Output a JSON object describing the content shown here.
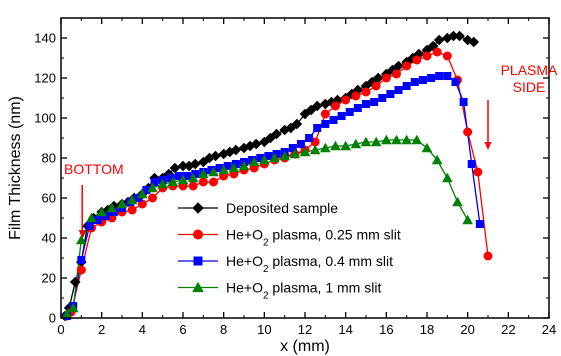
{
  "chart_data": {
    "type": "line",
    "title": "",
    "xlabel": "x (mm)",
    "ylabel": "Film Thickness (nm)",
    "xlim": [
      0,
      24
    ],
    "ylim": [
      0,
      150
    ],
    "xticks": [
      0,
      2,
      4,
      6,
      8,
      10,
      12,
      14,
      16,
      18,
      20,
      22,
      24
    ],
    "yticks": [
      0,
      20,
      40,
      60,
      80,
      100,
      120,
      140
    ],
    "legend_position": "center-right",
    "grid": false,
    "series": [
      {
        "name": "Deposited sample",
        "color": "#000000",
        "marker": "diamond",
        "x": [
          0.2,
          0.4,
          0.7,
          1.0,
          1.3,
          1.6,
          2.0,
          2.3,
          2.6,
          3.0,
          3.3,
          3.6,
          4.0,
          4.3,
          4.6,
          5.0,
          5.3,
          5.6,
          6.0,
          6.3,
          6.6,
          7.0,
          7.3,
          7.6,
          8.0,
          8.3,
          8.6,
          9.0,
          9.3,
          9.6,
          10.0,
          10.3,
          10.6,
          11.0,
          11.3,
          11.6,
          12.0,
          12.3,
          12.6,
          13.0,
          13.3,
          13.6,
          14.0,
          14.3,
          14.6,
          15.0,
          15.3,
          15.6,
          16.0,
          16.3,
          16.6,
          17.0,
          17.3,
          17.6,
          18.0,
          18.3,
          18.6,
          19.0,
          19.3,
          19.6,
          20.0,
          20.3
        ],
        "values": [
          1,
          5,
          18,
          28,
          46,
          50,
          53,
          54,
          56,
          57,
          58,
          60,
          62,
          65,
          70,
          70,
          72,
          75,
          76,
          76,
          77,
          78,
          80,
          81,
          82,
          83,
          84,
          85,
          86,
          87,
          88,
          90,
          92,
          94,
          95,
          97,
          102,
          104,
          106,
          107,
          108,
          109,
          110,
          112,
          114,
          116,
          118,
          120,
          122,
          124,
          126,
          128,
          130,
          132,
          134,
          136,
          139,
          140,
          141,
          141,
          139,
          138
        ]
      },
      {
        "name": "He+O2 plasma, 0.25 mm slit",
        "label_prefix": "He+O",
        "label_sub": "2",
        "label_suffix": " plasma, 0.25 mm slit",
        "color": "#ff0000",
        "marker": "circle",
        "x": [
          0.3,
          0.5,
          1.0,
          1.5,
          2.0,
          2.5,
          3.0,
          3.5,
          4.0,
          4.5,
          5.0,
          5.5,
          6.0,
          6.5,
          7.0,
          7.5,
          8.0,
          8.5,
          9.0,
          9.5,
          10.0,
          10.5,
          11.0,
          11.5,
          12.0,
          12.5,
          13.0,
          13.5,
          14.0,
          14.5,
          15.0,
          15.5,
          16.0,
          16.5,
          17.0,
          17.5,
          18.0,
          18.5,
          19.0,
          19.5,
          20.0,
          20.5,
          21.0
        ],
        "values": [
          1,
          3,
          24,
          45,
          48,
          50,
          53,
          54,
          57,
          60,
          65,
          66,
          66,
          66,
          68,
          68,
          71,
          72,
          74,
          75,
          77,
          79,
          80,
          82,
          84,
          88,
          102,
          106,
          109,
          111,
          113,
          116,
          120,
          122,
          126,
          129,
          131,
          133,
          131,
          119,
          93,
          73,
          31
        ]
      },
      {
        "name": "He+O2 plasma, 0.4 mm slit",
        "label_prefix": "He+O",
        "label_sub": "2",
        "label_suffix": " plasma, 0.4 mm slit",
        "color": "#0000ff",
        "marker": "square",
        "x": [
          0.3,
          0.6,
          1.0,
          1.4,
          1.8,
          2.2,
          2.6,
          3.0,
          3.4,
          3.8,
          4.2,
          4.6,
          5.0,
          5.4,
          5.8,
          6.2,
          6.6,
          7.0,
          7.4,
          7.8,
          8.2,
          8.6,
          9.0,
          9.4,
          9.8,
          10.2,
          10.6,
          11.0,
          11.4,
          11.8,
          12.2,
          12.6,
          13.0,
          13.4,
          13.8,
          14.2,
          14.6,
          15.0,
          15.4,
          15.8,
          16.2,
          16.6,
          17.0,
          17.4,
          17.8,
          18.2,
          18.6,
          19.0,
          19.4,
          19.8,
          20.2,
          20.6
        ],
        "values": [
          1,
          6,
          29,
          46,
          49,
          51,
          53,
          55,
          58,
          60,
          64,
          68,
          69,
          70,
          71,
          71,
          72,
          73,
          74,
          75,
          76,
          77,
          78,
          79,
          80,
          81,
          82,
          83,
          85,
          87,
          90,
          95,
          97,
          99,
          101,
          103,
          105,
          107,
          108,
          110,
          112,
          114,
          116,
          118,
          119,
          120,
          121,
          121,
          118,
          108,
          77,
          47
        ]
      },
      {
        "name": "He+O2 plasma, 1 mm slit",
        "label_prefix": "He+O",
        "label_sub": "2",
        "label_suffix": " plasma, 1 mm slit",
        "color": "#008000",
        "marker": "triangle",
        "x": [
          0.3,
          0.6,
          1.0,
          1.5,
          2.0,
          2.5,
          3.0,
          3.5,
          4.0,
          4.5,
          5.0,
          5.5,
          6.0,
          6.5,
          7.0,
          7.5,
          8.0,
          8.5,
          9.0,
          9.5,
          10.0,
          10.5,
          11.0,
          11.5,
          12.0,
          12.5,
          13.0,
          13.5,
          14.0,
          14.5,
          15.0,
          15.5,
          16.0,
          16.5,
          17.0,
          17.5,
          18.0,
          18.5,
          19.0,
          19.5,
          20.0
        ],
        "values": [
          2,
          5,
          39,
          50,
          53,
          55,
          57,
          59,
          62,
          65,
          67,
          68,
          69,
          70,
          72,
          73,
          74,
          75,
          76,
          78,
          79,
          80,
          81,
          82,
          83,
          84,
          85,
          86,
          86,
          87,
          88,
          88,
          89,
          89,
          89,
          89,
          85,
          79,
          70,
          58,
          49
        ]
      }
    ],
    "annotations": [
      {
        "text": "BOTTOM",
        "x": 0.6,
        "y": 68,
        "arrow_to": [
          0.6,
          40
        ]
      },
      {
        "text": "PLASMA",
        "x": 21.0,
        "y": 119,
        "arrow_to": [
          21.0,
          84
        ]
      },
      {
        "text": "SIDE",
        "x": 21.0,
        "y": 119
      }
    ]
  }
}
